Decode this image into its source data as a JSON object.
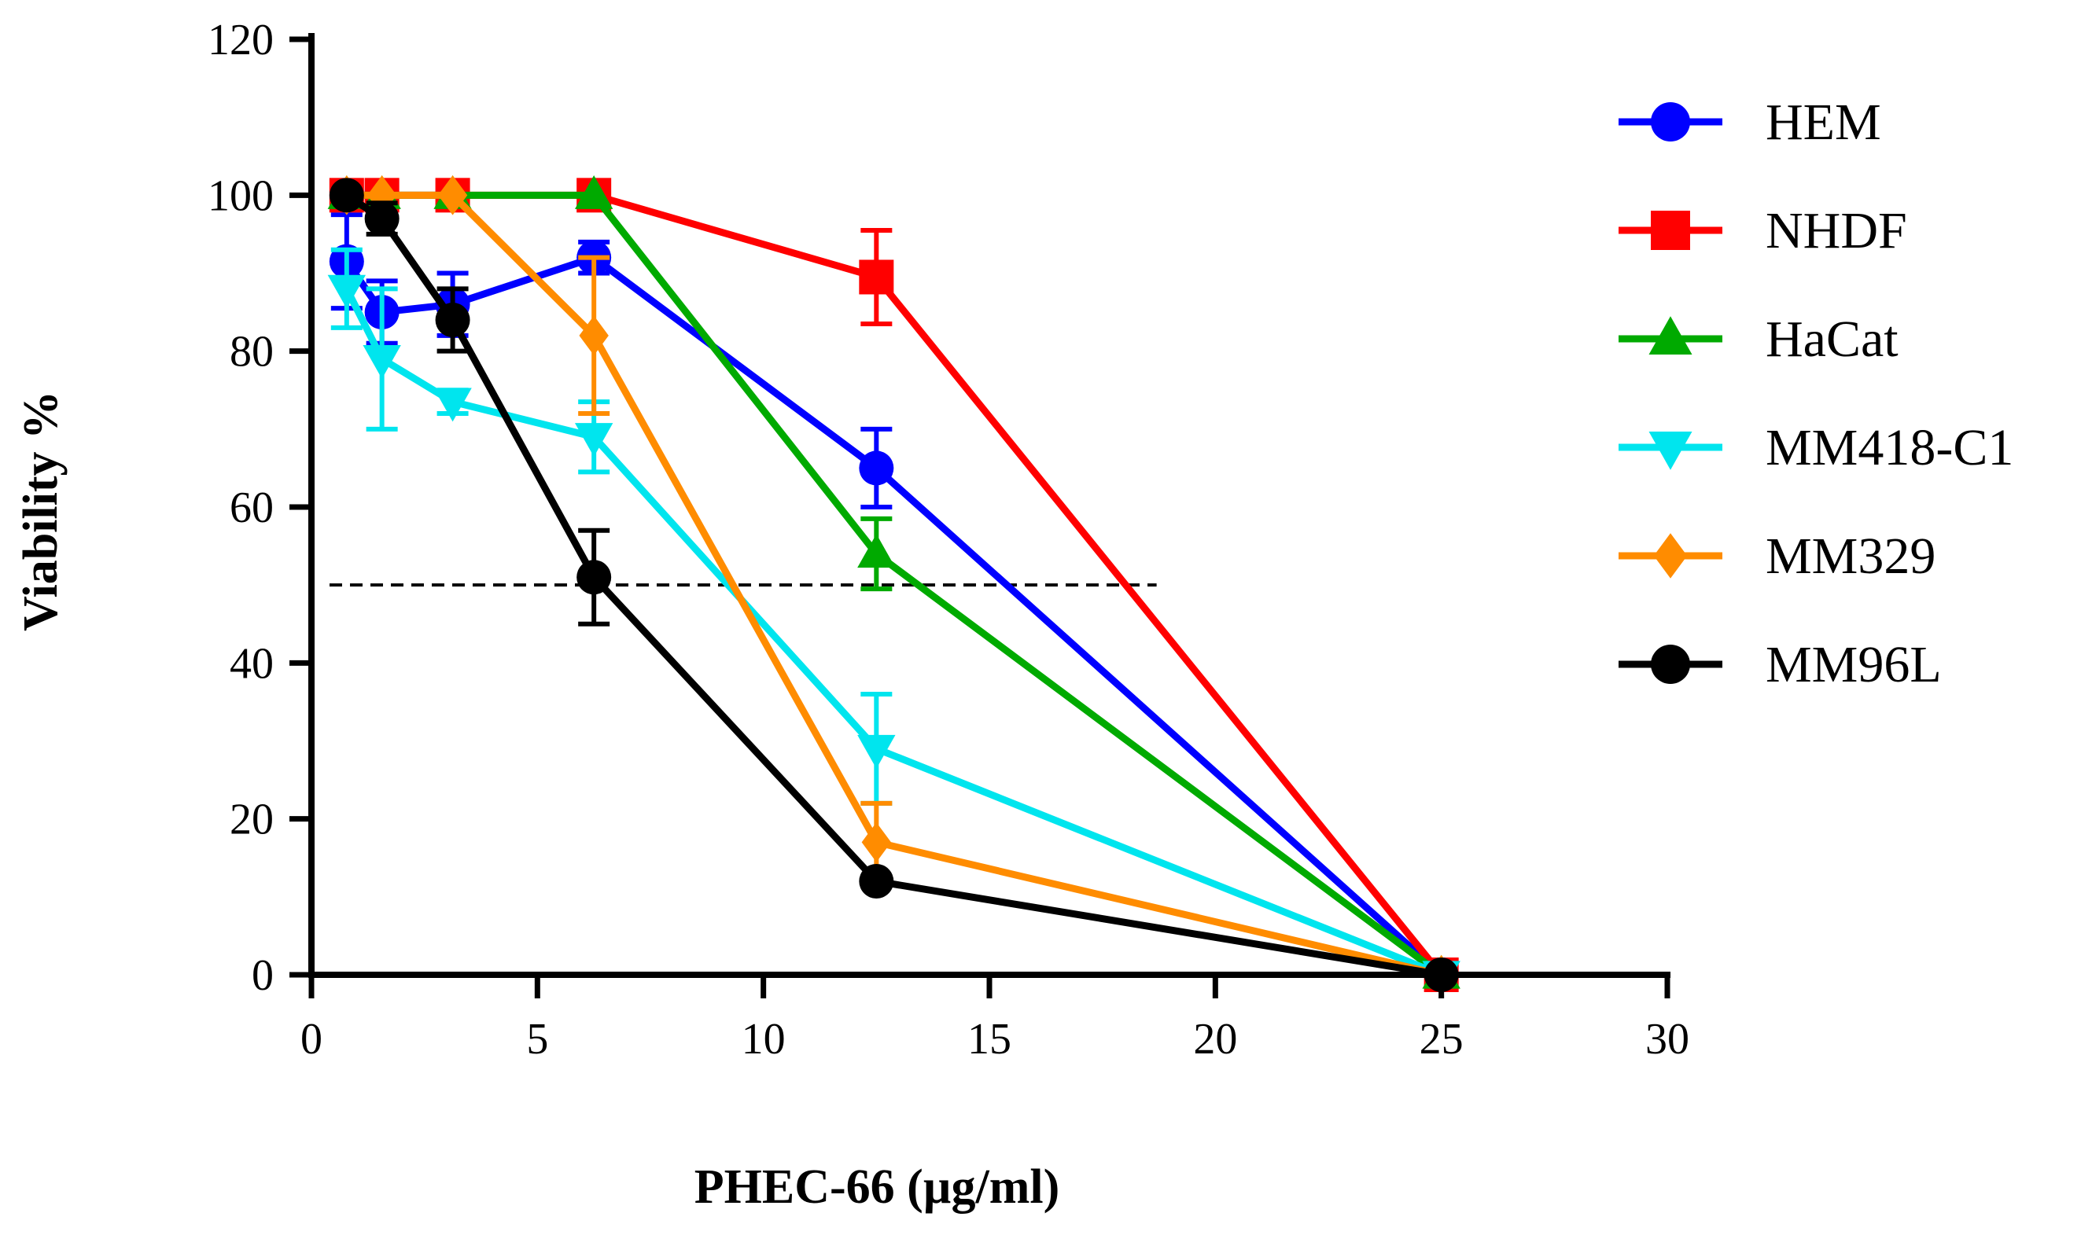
{
  "chart_data": {
    "type": "line",
    "title": "",
    "xlabel": "PHEC-66 (µg/ml)",
    "ylabel": "Viability %",
    "xlim": [
      0,
      30
    ],
    "ylim": [
      0,
      120
    ],
    "xticks": [
      0,
      5,
      10,
      15,
      20,
      25,
      30
    ],
    "yticks": [
      0,
      20,
      40,
      60,
      80,
      100,
      120
    ],
    "xtick_labels": [
      "0",
      "5",
      "10",
      "15",
      "20",
      "25",
      "30"
    ],
    "ytick_labels": [
      "0",
      "20",
      "40",
      "60",
      "80",
      "100",
      "120"
    ],
    "grid": false,
    "legend_position": "right",
    "reference_line": {
      "y": 50,
      "x_range": [
        0.4,
        18.7
      ],
      "style": "dashed"
    },
    "series": [
      {
        "name": "HEM",
        "color": "#0000ff",
        "marker": "circle",
        "x": [
          0.78,
          1.56,
          3.125,
          6.25,
          12.5,
          25
        ],
        "y": [
          91.5,
          85,
          86,
          92,
          65,
          0
        ],
        "err": [
          6,
          4,
          4,
          2,
          5,
          0
        ]
      },
      {
        "name": "NHDF",
        "color": "#ff0000",
        "marker": "square",
        "x": [
          0.78,
          1.56,
          3.125,
          6.25,
          12.5,
          25
        ],
        "y": [
          100,
          100,
          100,
          100,
          89.5,
          0
        ],
        "err": [
          0,
          0,
          0,
          0,
          6,
          0
        ]
      },
      {
        "name": "HaCat",
        "color": "#00aa00",
        "marker": "triangle-up",
        "x": [
          0.78,
          1.56,
          3.125,
          6.25,
          12.5,
          25
        ],
        "y": [
          100,
          100,
          100,
          100,
          54,
          0
        ],
        "err": [
          0,
          0,
          0,
          0,
          4.5,
          0
        ]
      },
      {
        "name": "MM418-C1",
        "color": "#00e5ee",
        "marker": "triangle-down",
        "x": [
          0.78,
          1.56,
          3.125,
          6.25,
          12.5,
          25
        ],
        "y": [
          88,
          79,
          73.5,
          69,
          29,
          0
        ],
        "err": [
          5,
          9,
          1.5,
          4.5,
          7,
          0
        ]
      },
      {
        "name": "MM329",
        "color": "#ff8c00",
        "marker": "diamond",
        "x": [
          0.78,
          1.56,
          3.125,
          6.25,
          12.5,
          25
        ],
        "y": [
          100,
          100,
          100,
          82,
          17,
          0
        ],
        "err": [
          0,
          0,
          0,
          10,
          5,
          0
        ]
      },
      {
        "name": "MM96L",
        "color": "#000000",
        "marker": "circle",
        "x": [
          0.78,
          1.56,
          3.125,
          6.25,
          12.5,
          25
        ],
        "y": [
          100,
          97,
          84,
          51,
          12,
          0
        ],
        "err": [
          0,
          2,
          4,
          6,
          0,
          0
        ]
      }
    ]
  }
}
